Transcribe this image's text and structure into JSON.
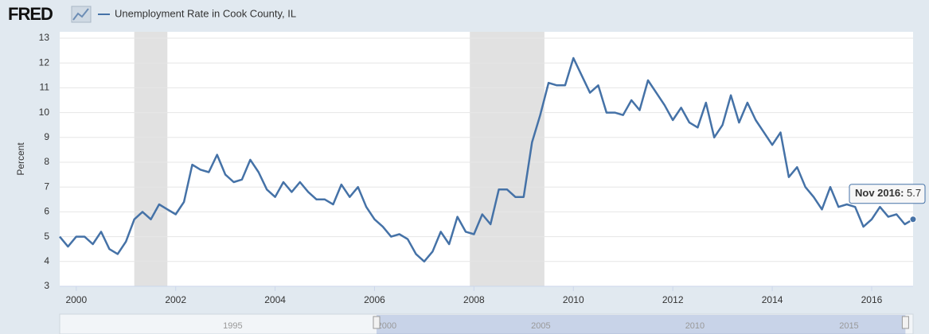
{
  "chart_data": {
    "type": "line",
    "logo": "FRED",
    "ylabel": "Percent",
    "series": [
      {
        "name": "Unemployment Rate in Cook County, IL",
        "color": "#4572a7",
        "x": [
          1999.667,
          1999.833,
          2000.0,
          2000.167,
          2000.333,
          2000.5,
          2000.667,
          2000.833,
          2001.0,
          2001.167,
          2001.333,
          2001.5,
          2001.667,
          2001.833,
          2002.0,
          2002.167,
          2002.333,
          2002.5,
          2002.667,
          2002.833,
          2003.0,
          2003.167,
          2003.333,
          2003.5,
          2003.667,
          2003.833,
          2004.0,
          2004.167,
          2004.333,
          2004.5,
          2004.667,
          2004.833,
          2005.0,
          2005.167,
          2005.333,
          2005.5,
          2005.667,
          2005.833,
          2006.0,
          2006.167,
          2006.333,
          2006.5,
          2006.667,
          2006.833,
          2007.0,
          2007.167,
          2007.333,
          2007.5,
          2007.667,
          2007.833,
          2008.0,
          2008.167,
          2008.333,
          2008.5,
          2008.667,
          2008.833,
          2009.0,
          2009.167,
          2009.333,
          2009.5,
          2009.667,
          2009.833,
          2010.0,
          2010.167,
          2010.333,
          2010.5,
          2010.667,
          2010.833,
          2011.0,
          2011.167,
          2011.333,
          2011.5,
          2011.667,
          2011.833,
          2012.0,
          2012.167,
          2012.333,
          2012.5,
          2012.667,
          2012.833,
          2013.0,
          2013.167,
          2013.333,
          2013.5,
          2013.667,
          2013.833,
          2014.0,
          2014.167,
          2014.333,
          2014.5,
          2014.667,
          2014.833,
          2015.0,
          2015.167,
          2015.333,
          2015.5,
          2015.667,
          2015.833,
          2016.0,
          2016.167,
          2016.333,
          2016.5,
          2016.667,
          2016.833
        ],
        "values": [
          5.0,
          4.6,
          5.0,
          5.0,
          4.7,
          5.2,
          4.5,
          4.3,
          4.8,
          5.7,
          6.0,
          5.7,
          6.3,
          6.1,
          5.9,
          6.4,
          7.9,
          7.7,
          7.6,
          8.3,
          7.5,
          7.2,
          7.3,
          8.1,
          7.6,
          6.9,
          6.6,
          7.2,
          6.8,
          7.2,
          6.8,
          6.5,
          6.5,
          6.3,
          7.1,
          6.6,
          7.0,
          6.2,
          5.7,
          5.4,
          5.0,
          5.1,
          4.9,
          4.3,
          4.0,
          4.4,
          5.2,
          4.7,
          5.8,
          5.2,
          5.1,
          5.9,
          5.5,
          6.9,
          6.9,
          6.6,
          6.6,
          8.8,
          9.9,
          11.2,
          11.1,
          11.1,
          12.2,
          11.5,
          10.8,
          11.1,
          10.0,
          10.0,
          9.9,
          10.5,
          10.1,
          11.3,
          10.8,
          10.3,
          9.7,
          10.2,
          9.6,
          9.4,
          10.4,
          9.0,
          9.5,
          10.7,
          9.6,
          10.4,
          9.7,
          9.2,
          8.7,
          9.2,
          7.4,
          7.8,
          7.0,
          6.6,
          6.1,
          7.0,
          6.2,
          6.3,
          6.2,
          5.4,
          5.7,
          6.2,
          5.8,
          5.9,
          5.5,
          5.7
        ]
      }
    ],
    "shaded_periods": [
      [
        2001.167,
        2001.833
      ],
      [
        2007.917,
        2009.417
      ]
    ],
    "xlim": [
      1999.667,
      2016.833
    ],
    "xticks": [
      2000,
      2002,
      2004,
      2006,
      2008,
      2010,
      2012,
      2014,
      2016
    ],
    "ylim": [
      3,
      13
    ],
    "yticks": [
      3,
      4,
      5,
      6,
      7,
      8,
      9,
      10,
      11,
      12,
      13
    ],
    "grid": true,
    "tooltip": {
      "label": "Nov 2016",
      "index": 103
    },
    "navigator": {
      "xlim": [
        1989.72,
        2016.9
      ],
      "xticks": [
        1995,
        2000,
        2005,
        2010,
        2015
      ]
    }
  }
}
